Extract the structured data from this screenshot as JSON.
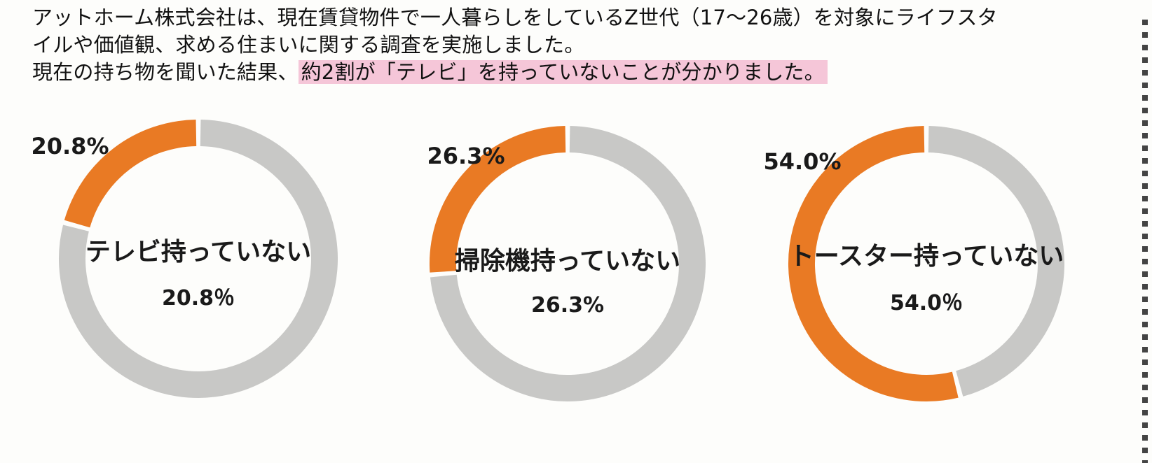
{
  "intro": {
    "line1": "アットホーム株式会社は、現在賃貸物件で一人暮らしをしているZ世代（17～26歳）を対象にライフスタ",
    "line2": "イルや価値観、求める住まいに関する調査を実施しました。",
    "line3_plain": "現在の持ち物を聞いた結果、",
    "line3_highlight": "約2割が「テレビ」を持っていないことが分かりました。"
  },
  "colors": {
    "accent": "#e97a24",
    "remainder": "#c8c8c6",
    "highlight": "#f5c6d8"
  },
  "chart_data": [
    {
      "type": "pie",
      "variant": "donut",
      "center_title": "テレビ持っていない",
      "center_value_label": "20.8％",
      "slices": [
        {
          "label": "持っていない",
          "value": 20.8,
          "data_label": "20.8%"
        },
        {
          "label": "",
          "value": 79.2
        }
      ]
    },
    {
      "type": "pie",
      "variant": "donut",
      "center_title": "掃除機持っていない",
      "center_value_label": "26.3%",
      "slices": [
        {
          "label": "持っていない",
          "value": 26.3,
          "data_label": "26.3%"
        },
        {
          "label": "",
          "value": 73.7
        }
      ]
    },
    {
      "type": "pie",
      "variant": "donut",
      "center_title": "トースター持っていない",
      "center_value_label": "54.0％",
      "slices": [
        {
          "label": "持っていない",
          "value": 54.0,
          "data_label": "54.0%"
        },
        {
          "label": "",
          "value": 46.0
        }
      ]
    }
  ]
}
